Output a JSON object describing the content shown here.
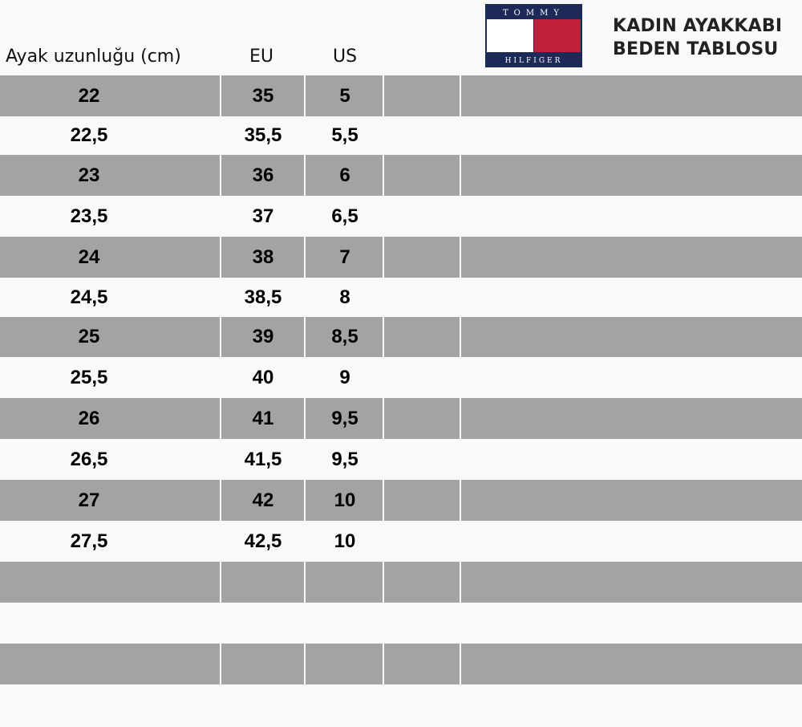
{
  "headers": {
    "foot_length": "Ayak uzunluğu (cm)",
    "eu": "EU",
    "us": "US"
  },
  "title": {
    "line1": "KADIN AYAKKABI",
    "line2": "BEDEN TABLOSU"
  },
  "logo": {
    "top_text": "TOMMY",
    "bottom_text": "HILFIGER",
    "navy": "#1d2a57",
    "red": "#c0203a",
    "white": "#ffffff"
  },
  "colors": {
    "stripe": "#a3a2a5",
    "background": "#f9f9f9"
  },
  "rows": [
    {
      "cm": "22",
      "eu": "35",
      "us": "5"
    },
    {
      "cm": "22,5",
      "eu": "35,5",
      "us": "5,5"
    },
    {
      "cm": "23",
      "eu": "36",
      "us": "6"
    },
    {
      "cm": "23,5",
      "eu": "37",
      "us": "6,5"
    },
    {
      "cm": "24",
      "eu": "38",
      "us": "7"
    },
    {
      "cm": "24,5",
      "eu": "38,5",
      "us": "8"
    },
    {
      "cm": "25",
      "eu": "39",
      "us": "8,5"
    },
    {
      "cm": "25,5",
      "eu": "40",
      "us": "9"
    },
    {
      "cm": "26",
      "eu": "41",
      "us": "9,5"
    },
    {
      "cm": "26,5",
      "eu": "41,5",
      "us": "9,5"
    },
    {
      "cm": "27",
      "eu": "42",
      "us": "10"
    },
    {
      "cm": "27,5",
      "eu": "42,5",
      "us": "10"
    },
    {
      "cm": "",
      "eu": "",
      "us": ""
    },
    {
      "cm": "",
      "eu": "",
      "us": ""
    },
    {
      "cm": "",
      "eu": "",
      "us": ""
    }
  ]
}
